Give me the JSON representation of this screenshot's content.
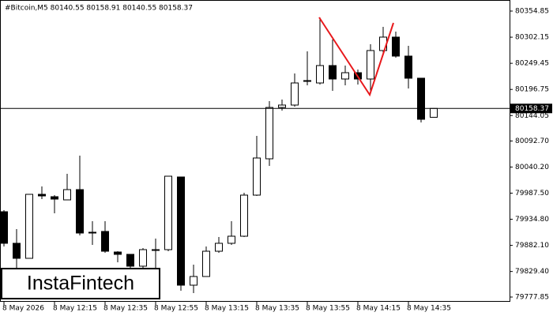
{
  "chart_data": {
    "type": "candlestick",
    "title": "#Bitcoin,M5  80140.55 80158.91 80140.55 80158.37",
    "brand": "InstaFintech",
    "categories": [
      "8 May 2026",
      null,
      null,
      null,
      "8 May 12:15",
      null,
      null,
      null,
      "8 May 12:35",
      null,
      null,
      null,
      "8 May 12:55",
      null,
      null,
      null,
      "8 May 13:15",
      null,
      null,
      null,
      "8 May 13:35",
      null,
      null,
      null,
      "8 May 13:55",
      null,
      null,
      null,
      "8 May 14:15",
      null,
      null,
      null,
      "8 May 14:35",
      null,
      null
    ],
    "open": [
      79950.0,
      79886.3,
      79856.0,
      79985.1,
      79980.3,
      79973.9,
      79994.6,
      79908.6,
      79910.2,
      79868.7,
      79864.0,
      79840.1,
      79873.5,
      79873.5,
      80020.1,
      79801.8,
      79819.3,
      79870.3,
      79886.3,
      79900.6,
      79983.5,
      80056.8,
      80160.4,
      80165.2,
      80214.6,
      80209.8,
      80244.9,
      80217.8,
      80230.5,
      80217.8,
      80275.2,
      80302.3,
      80264.0,
      80219.4,
      80140.55
    ],
    "high": [
      79953.2,
      79914.9,
      79985.1,
      80001.0,
      79983.5,
      80026.5,
      80063.2,
      79930.9,
      79930.9,
      79870.3,
      79864.0,
      79876.7,
      79895.8,
      80021.7,
      80020.1,
      79843.2,
      79879.9,
      79899.0,
      79930.9,
      79988.2,
      80103.0,
      80173.1,
      80176.3,
      80228.9,
      80273.6,
      80342.1,
      80297.5,
      80244.9,
      80236.9,
      80287.9,
      80323.0,
      80313.4,
      80284.7,
      80219.4,
      80158.91
    ],
    "low": [
      79879.9,
      79835.3,
      79856.0,
      79975.5,
      79946.8,
      79973.9,
      79902.2,
      79883.1,
      79867.1,
      79848.0,
      79827.3,
      79835.3,
      79835.3,
      79870.3,
      79790.7,
      79785.9,
      79819.3,
      79867.1,
      79883.1,
      79899.0,
      79981.9,
      80042.5,
      80154.0,
      80162.0,
      80205.0,
      80206.6,
      80193.9,
      80205.0,
      80206.6,
      80187.2,
      80265.6,
      80260.8,
      80198.6,
      80130.1,
      80140.55
    ],
    "close": [
      79886.3,
      79856.0,
      79985.1,
      79981.9,
      79975.5,
      79994.6,
      79907.0,
      79908.6,
      79870.3,
      79864.0,
      79840.1,
      79873.5,
      79873.5,
      80021.7,
      79801.8,
      79819.3,
      79870.3,
      79886.3,
      79900.6,
      79983.5,
      80058.4,
      80160.4,
      80165.2,
      80209.8,
      80214.6,
      80244.9,
      80217.8,
      80230.5,
      80217.8,
      80275.2,
      80302.3,
      80264.0,
      80219.4,
      80136.5,
      80158.37
    ],
    "up_color": "#ffffff",
    "down_color": "#000000",
    "current_price": 80158.37,
    "ylim": [
      79768.3,
      80370.8
    ],
    "yticks": [
      80354.85,
      80302.15,
      80249.45,
      80196.75,
      80144.05,
      {
        "value": 80092.7,
        "label": "80092.70"
      },
      {
        "value": 80040.2,
        "label": "80040.20"
      },
      {
        "value": 79987.5,
        "label": "79987.50"
      },
      {
        "value": 79934.8,
        "label": "79934.80"
      },
      {
        "value": 79882.1,
        "label": "79882.10"
      },
      {
        "value": 79829.4,
        "label": "79829.40"
      },
      79777.85
    ]
  }
}
